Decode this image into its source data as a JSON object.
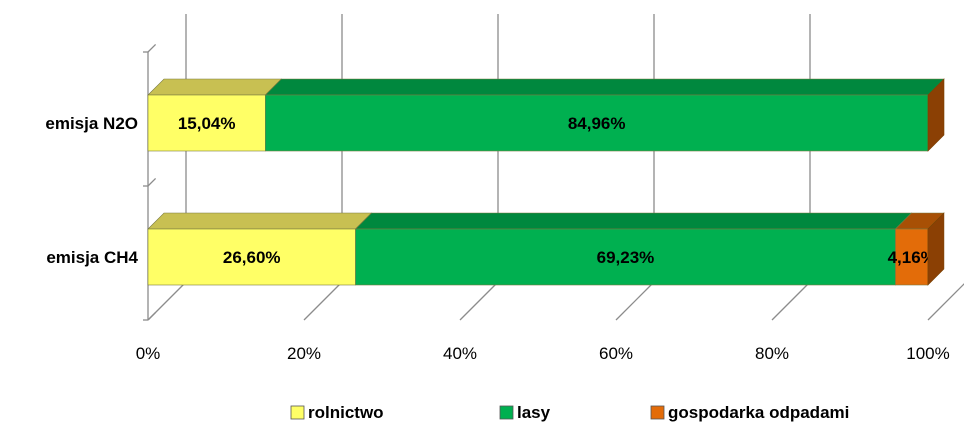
{
  "chart_data": {
    "type": "bar",
    "orientation": "horizontal",
    "stacked": "percent",
    "style": "3d",
    "categories": [
      "emisja N2O",
      "emisja CH4"
    ],
    "series": [
      {
        "name": "rolnictwo",
        "values": [
          15.04,
          26.6
        ],
        "labels": [
          "15,04%",
          "26,60%"
        ],
        "color": "#ffff66",
        "top_color": "#c8c052",
        "side_color": "#c8c052"
      },
      {
        "name": "lasy",
        "values": [
          84.96,
          69.23
        ],
        "labels": [
          "84,96%",
          "69,23%"
        ],
        "color": "#00b050",
        "top_color": "#00883e",
        "side_color": "#00883e"
      },
      {
        "name": "gospodarka odpadami",
        "values": [
          0,
          4.16
        ],
        "labels": [
          "",
          "4,16%"
        ],
        "color": "#e36c09",
        "top_color": "#a85005",
        "side_color": "#8b4004"
      }
    ],
    "x_ticks": [
      "0%",
      "20%",
      "40%",
      "60%",
      "80%",
      "100%"
    ],
    "xlim": [
      0,
      100
    ],
    "grid": true,
    "legend_position": "bottom"
  }
}
